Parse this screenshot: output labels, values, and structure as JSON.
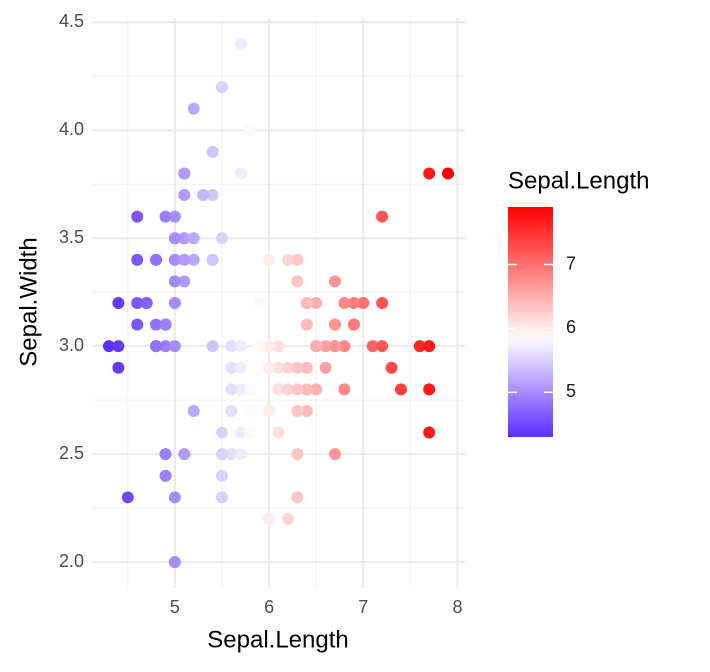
{
  "chart_data": {
    "type": "scatter",
    "x_label": "Sepal.Length",
    "y_label": "Sepal.Width",
    "x": [
      5.1,
      4.9,
      4.7,
      4.6,
      5.0,
      5.4,
      4.6,
      5.0,
      4.4,
      4.9,
      5.4,
      4.8,
      4.8,
      4.3,
      5.8,
      5.7,
      5.4,
      5.1,
      5.7,
      5.1,
      5.4,
      5.1,
      4.6,
      5.1,
      4.8,
      5.0,
      5.0,
      5.2,
      5.2,
      4.7,
      4.8,
      5.4,
      5.2,
      5.5,
      4.9,
      5.0,
      5.5,
      4.9,
      4.4,
      5.1,
      5.0,
      4.5,
      4.4,
      5.0,
      5.1,
      4.8,
      5.1,
      4.6,
      5.3,
      5.0,
      7.0,
      6.4,
      6.9,
      5.5,
      6.5,
      5.7,
      6.3,
      4.9,
      6.6,
      5.2,
      5.0,
      5.9,
      6.0,
      6.1,
      5.6,
      6.7,
      5.6,
      5.8,
      6.2,
      5.6,
      5.9,
      6.1,
      6.3,
      6.1,
      6.4,
      6.6,
      6.8,
      6.7,
      6.0,
      5.7,
      5.5,
      5.5,
      5.8,
      6.0,
      5.4,
      6.0,
      6.7,
      6.3,
      5.6,
      5.5,
      5.5,
      6.1,
      5.8,
      5.0,
      5.6,
      5.7,
      5.7,
      6.2,
      5.1,
      5.7,
      6.3,
      5.8,
      7.1,
      6.3,
      6.5,
      7.6,
      4.9,
      7.3,
      6.7,
      7.2,
      6.5,
      6.4,
      6.8,
      5.7,
      5.8,
      6.4,
      6.5,
      7.7,
      7.7,
      6.0,
      6.9,
      5.6,
      7.7,
      6.3,
      6.7,
      7.2,
      6.2,
      6.1,
      6.4,
      7.2,
      7.4,
      7.9,
      6.4,
      6.3,
      6.1,
      7.7,
      6.3,
      6.4,
      6.0,
      6.9,
      6.7,
      6.9,
      5.8,
      6.8,
      6.7,
      6.7,
      6.3,
      6.5,
      6.2,
      5.9
    ],
    "values": [
      3.5,
      3.0,
      3.2,
      3.1,
      3.6,
      3.9,
      3.4,
      3.4,
      2.9,
      3.1,
      3.7,
      3.4,
      3.0,
      3.0,
      4.0,
      4.4,
      3.9,
      3.5,
      3.8,
      3.8,
      3.4,
      3.7,
      3.6,
      3.3,
      3.4,
      3.0,
      3.4,
      3.5,
      3.4,
      3.2,
      3.1,
      3.4,
      4.1,
      4.2,
      3.1,
      3.2,
      3.5,
      3.6,
      3.0,
      3.4,
      3.5,
      2.3,
      3.2,
      3.5,
      3.8,
      3.0,
      3.8,
      3.2,
      3.7,
      3.3,
      3.2,
      3.2,
      3.1,
      2.3,
      2.8,
      2.8,
      3.3,
      2.4,
      2.9,
      2.7,
      2.0,
      3.0,
      2.2,
      2.9,
      2.9,
      3.1,
      3.0,
      2.7,
      2.2,
      2.5,
      3.2,
      2.8,
      2.5,
      2.8,
      2.9,
      3.0,
      2.8,
      3.0,
      2.9,
      2.6,
      2.4,
      2.4,
      2.7,
      2.7,
      3.0,
      3.4,
      3.1,
      2.3,
      3.0,
      2.5,
      2.6,
      3.0,
      2.6,
      2.3,
      2.7,
      3.0,
      2.9,
      2.9,
      2.5,
      2.8,
      3.3,
      2.7,
      3.0,
      2.9,
      3.0,
      3.0,
      2.5,
      2.9,
      2.5,
      3.6,
      3.2,
      2.7,
      3.0,
      2.5,
      2.8,
      3.2,
      3.0,
      3.8,
      2.6,
      2.2,
      3.2,
      2.8,
      2.8,
      2.7,
      3.3,
      3.2,
      2.8,
      3.0,
      2.8,
      3.0,
      2.8,
      3.8,
      2.8,
      2.8,
      2.6,
      3.0,
      3.4,
      3.1,
      3.0,
      3.1,
      3.1,
      3.1,
      2.7,
      3.2,
      3.3,
      3.0,
      2.5,
      3.0,
      3.4,
      3.0
    ],
    "xlim": [
      4.12,
      8.08
    ],
    "xticks": [
      5,
      6,
      7,
      8
    ],
    "ylim": [
      1.88,
      4.52
    ],
    "yticks": [
      {
        "value": 2,
        "label": "2.0"
      },
      2.5,
      {
        "value": 3,
        "label": "3.0"
      },
      3.5,
      {
        "value": 4,
        "label": "4.0"
      },
      4.5
    ],
    "grid": true,
    "legend_title": "Sepal.Length",
    "color_scale": {
      "low": "#5c2dff",
      "mid": "#ffffff",
      "high": "#ff0000",
      "midpoint": 5.843
    },
    "colorbar_lim": [
      4.3,
      7.9
    ],
    "colorbar_ticks": [
      5,
      6,
      7
    ]
  }
}
